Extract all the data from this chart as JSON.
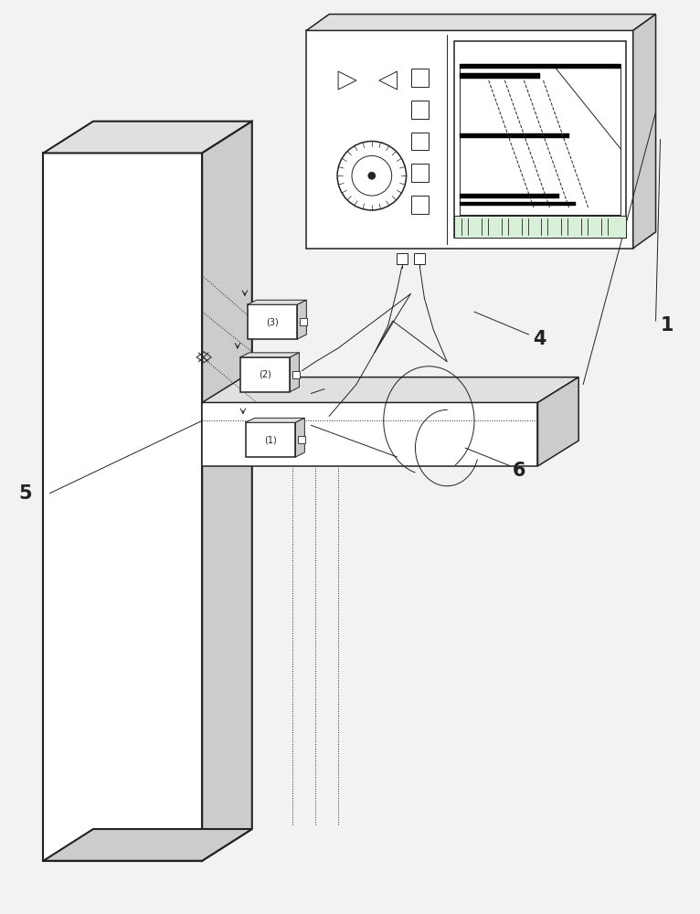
{
  "bg_color": "#f2f2f2",
  "line_color": "#555555",
  "dark_line": "#222222",
  "white": "#ffffff",
  "light_gray": "#e0e0e0",
  "mid_gray": "#cccccc",
  "dark_gray": "#aaaaaa",
  "label_1": "1",
  "label_4": "4",
  "label_5": "5",
  "label_6": "6",
  "figsize": [
    7.66,
    10.0
  ],
  "dpi": 100
}
